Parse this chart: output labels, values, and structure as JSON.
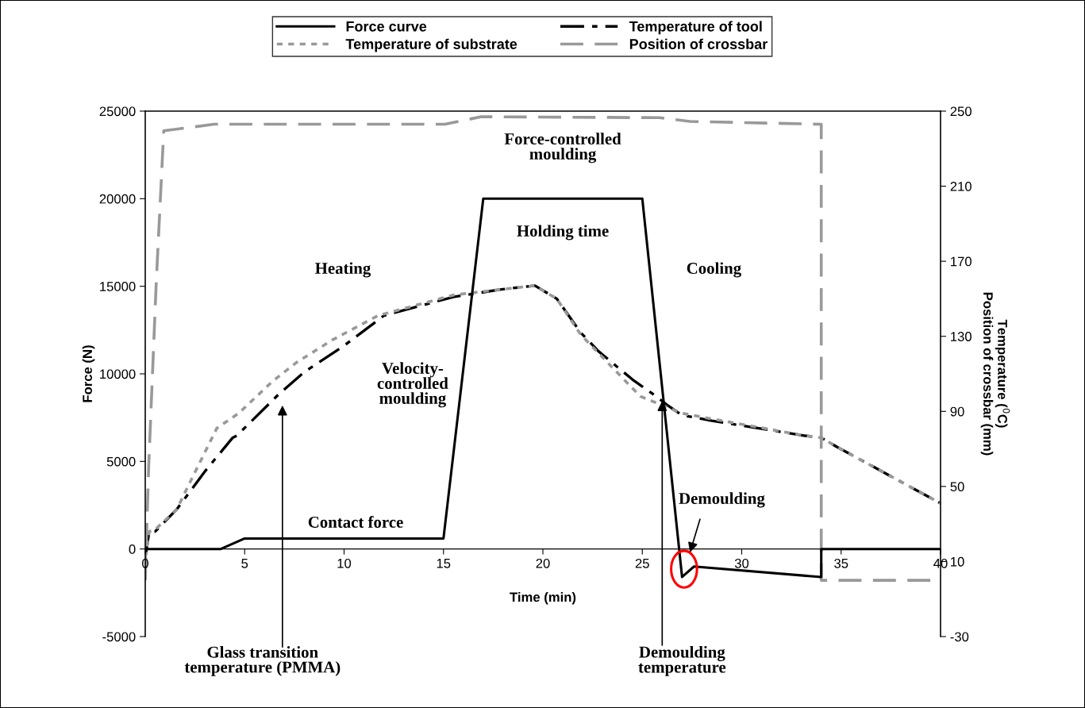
{
  "chart_data": {
    "type": "line",
    "xlabel": "Time (min)",
    "ylabel": "Force (N)",
    "y2label": "Temperature ($^{0}$C)\nPosition of crossbar (mm)",
    "xlim": [
      0,
      40
    ],
    "xticks": [
      0,
      5,
      10,
      15,
      20,
      25,
      30,
      35,
      40
    ],
    "ylim": [
      -5000,
      25000
    ],
    "yticks": [
      -5000,
      0,
      5000,
      10000,
      15000,
      20000,
      25000
    ],
    "y2lim": [
      -30,
      250
    ],
    "y2ticks": [
      -30,
      10,
      50,
      90,
      130,
      170,
      210,
      250
    ],
    "legend": "top",
    "grid": false,
    "series": [
      {
        "name": "Force curve",
        "color": "#000000",
        "line_style": "solid",
        "x": [
          0,
          3.8,
          5,
          15,
          17,
          25,
          27,
          27.6,
          34,
          34,
          40
        ],
        "values": [
          0,
          0,
          600,
          600,
          20000,
          20000,
          -1600,
          -1000,
          -1600,
          0,
          0
        ]
      },
      {
        "name": "Temperature of tool",
        "color": "#000000",
        "line_style": "dashdot",
        "axis": "y2",
        "x": [
          0,
          0.2,
          0.5,
          1.6,
          3,
          4.4,
          4.6,
          6.7,
          8,
          10,
          12,
          15.5,
          17.9,
          19.6,
          20.7,
          21.9,
          22.8,
          24.5,
          25.7,
          26.3,
          27,
          28.5,
          33.2,
          34,
          34.8,
          40
        ],
        "values": [
          12,
          26,
          26,
          38,
          58,
          76,
          77,
          99,
          111,
          125,
          141,
          151,
          155,
          157,
          150,
          132,
          122,
          107,
          98,
          93,
          88,
          85,
          77,
          76,
          71,
          41
        ]
      },
      {
        "name": "Temperature of substrate",
        "color": "#999999",
        "line_style": "dotted",
        "axis": "y2",
        "x": [
          0,
          0.2,
          0.5,
          1.6,
          2.1,
          3.6,
          4.7,
          6.4,
          7.6,
          9.4,
          11.7,
          15.5,
          17.9,
          19.6,
          20.7,
          21.9,
          22.8,
          24.9,
          26.3,
          27,
          28.5,
          33.2,
          34,
          34.8,
          40
        ],
        "values": [
          12,
          26,
          27,
          38,
          49,
          81,
          89,
          106,
          116,
          128,
          141,
          152,
          155,
          157,
          150,
          131,
          121,
          98,
          92,
          89,
          86,
          77,
          76,
          71,
          41
        ]
      },
      {
        "name": "Position of crossbar",
        "color": "#999999",
        "line_style": "dashed",
        "axis": "y2",
        "x": [
          0,
          0.17,
          0.55,
          0.93,
          3.45,
          15.07,
          16.9,
          25.86,
          27.4,
          34,
          34,
          40
        ],
        "values": [
          0,
          60,
          158,
          239.5,
          243,
          243,
          247,
          246.5,
          244.5,
          243,
          0,
          0
        ]
      }
    ],
    "annotations": [
      "Heating",
      "Velocity-\ncontrolled\nmoulding",
      "Contact force",
      "Force-controlled\nmoulding",
      "Holding time",
      "Cooling",
      "Demoulding",
      "Glass transition\ntemperature (PMMA)",
      {
        "text": "Demoulding\ntemperature",
        "x": 26.0,
        "y": 8450
      }
    ]
  }
}
